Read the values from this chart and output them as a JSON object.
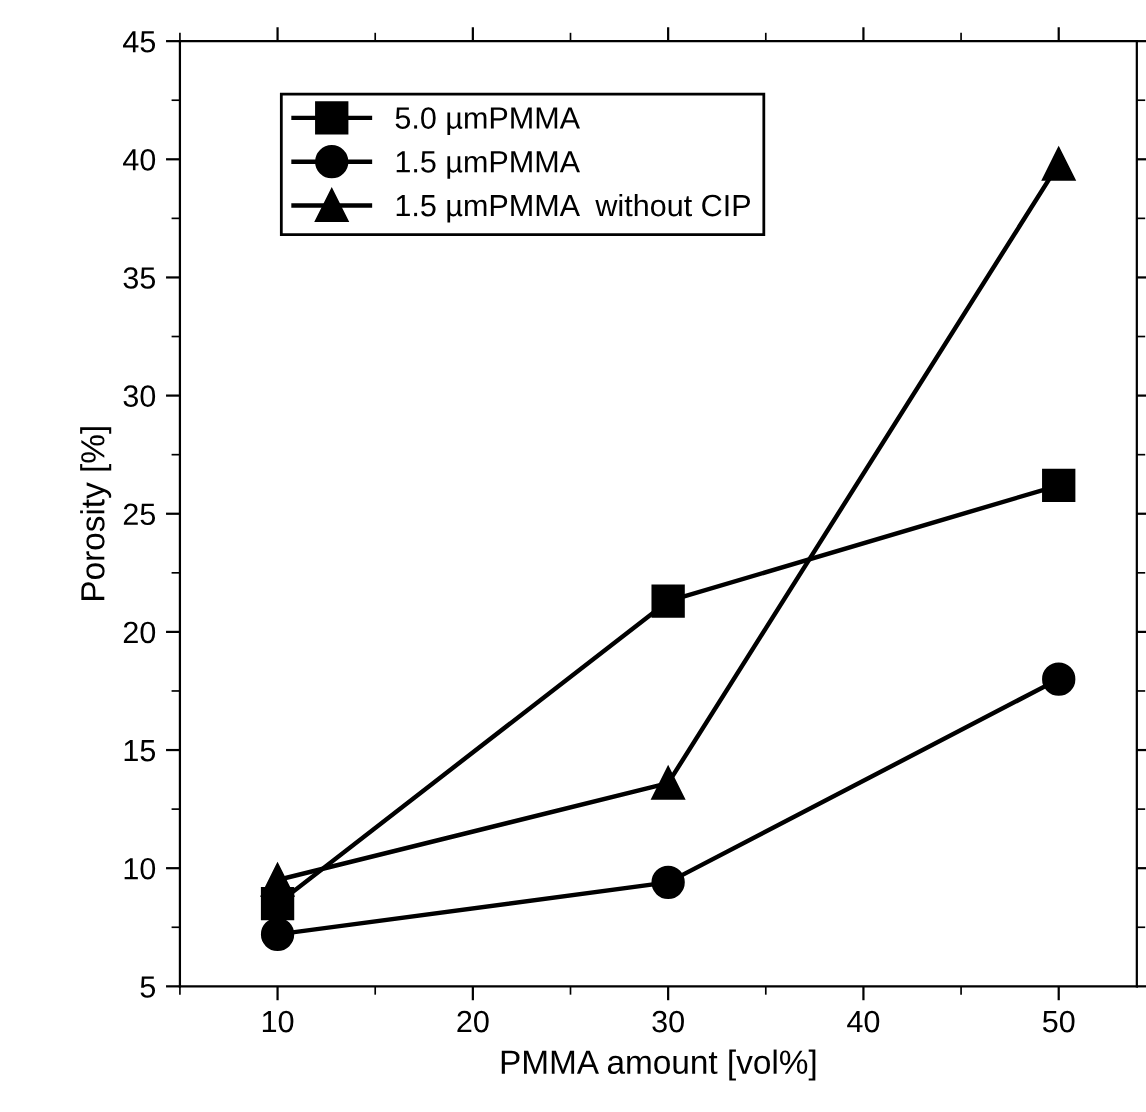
{
  "chart_data": {
    "type": "line",
    "xlabel": "PMMA amount [vol%]",
    "ylabel": "Porosity [%]",
    "x": [
      10,
      30,
      50
    ],
    "series": [
      {
        "name": "5.0 µmPMMA",
        "color": "#000000",
        "marker": "square",
        "values": [
          8.5,
          21.3,
          26.2
        ]
      },
      {
        "name": "1.5 µmPMMA",
        "color": "#000000",
        "marker": "circle",
        "values": [
          7.2,
          9.4,
          18.0
        ]
      },
      {
        "name": "1.5 µmPMMA  without CIP",
        "color": "#000000",
        "marker": "triangle",
        "values": [
          9.5,
          13.6,
          39.8
        ]
      }
    ],
    "xlim": [
      5,
      54
    ],
    "ylim": [
      5,
      45
    ],
    "xticks": [
      10,
      20,
      30,
      40,
      50
    ],
    "yticks": [
      5,
      10,
      15,
      20,
      25,
      30,
      35,
      40,
      45
    ],
    "grid": false,
    "legend": "top left",
    "line_style": "solid"
  }
}
